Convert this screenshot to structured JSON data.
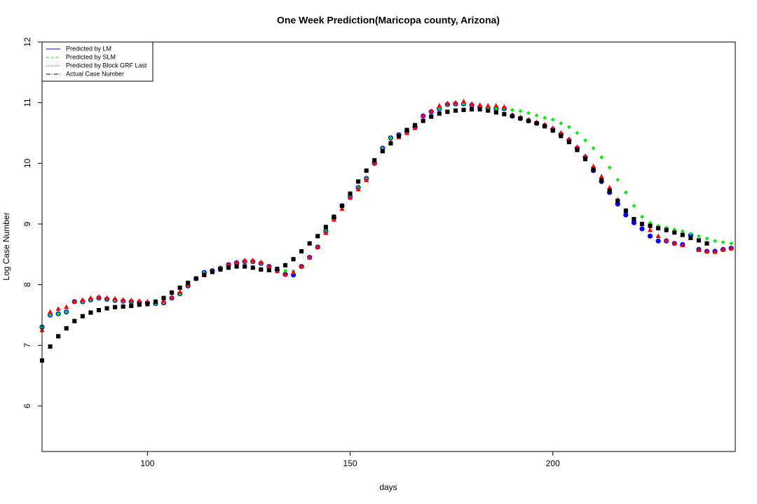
{
  "chart_data": {
    "type": "scatter",
    "title": "One Week Prediction(Maricopa county, Arizona)",
    "x_label": "days",
    "y_label": "Log Case Number",
    "xlim": [
      74,
      245
    ],
    "ylim": [
      5.25,
      12
    ],
    "xticks": [
      100,
      150,
      200
    ],
    "yticks": [
      6,
      7,
      8,
      9,
      10,
      11,
      12
    ],
    "legend_position": "topleft",
    "x": [
      74,
      76,
      78,
      80,
      82,
      84,
      86,
      88,
      90,
      92,
      94,
      96,
      98,
      100,
      102,
      104,
      106,
      108,
      110,
      112,
      114,
      116,
      118,
      120,
      122,
      124,
      126,
      128,
      130,
      132,
      134,
      136,
      138,
      140,
      142,
      144,
      146,
      148,
      150,
      152,
      154,
      156,
      158,
      160,
      162,
      164,
      166,
      168,
      170,
      172,
      174,
      176,
      178,
      180,
      182,
      184,
      186,
      188,
      190,
      192,
      194,
      196,
      198,
      200,
      202,
      204,
      206,
      208,
      210,
      212,
      214,
      216,
      218,
      220,
      222,
      224,
      226,
      228,
      230,
      232,
      234,
      236,
      238,
      240,
      242,
      244
    ],
    "series": [
      {
        "name": "Predicted by LM",
        "color": "#0000ff",
        "marker": "circle",
        "line": "solid",
        "values": [
          7.3,
          7.5,
          7.52,
          7.55,
          7.72,
          7.72,
          7.75,
          7.78,
          7.76,
          7.74,
          7.73,
          7.72,
          7.71,
          7.7,
          7.69,
          7.7,
          7.78,
          7.85,
          7.98,
          8.1,
          8.2,
          8.23,
          8.27,
          8.33,
          8.36,
          8.38,
          8.38,
          8.35,
          8.3,
          8.24,
          8.17,
          8.16,
          8.3,
          8.45,
          8.62,
          8.88,
          9.1,
          9.3,
          9.45,
          9.6,
          9.75,
          10.0,
          10.25,
          10.42,
          10.47,
          10.52,
          10.6,
          10.78,
          10.85,
          10.9,
          10.97,
          10.98,
          10.98,
          10.96,
          10.93,
          10.91,
          10.9,
          10.9,
          10.78,
          10.74,
          10.7,
          10.66,
          10.62,
          10.56,
          10.48,
          10.38,
          10.25,
          10.1,
          9.88,
          9.7,
          9.52,
          9.33,
          9.15,
          9.02,
          8.92,
          8.8,
          8.72,
          8.72,
          8.68,
          8.66,
          8.82,
          8.58,
          8.55,
          8.55,
          8.58,
          8.6
        ]
      },
      {
        "name": "Predicted by SLM",
        "color": "#00ee00",
        "marker": "diamond",
        "line": "dashed",
        "values": [
          7.3,
          7.5,
          7.52,
          7.55,
          7.72,
          7.72,
          7.75,
          7.78,
          7.76,
          7.74,
          7.73,
          7.72,
          7.71,
          7.7,
          7.69,
          7.7,
          7.78,
          7.85,
          7.98,
          8.1,
          8.2,
          8.23,
          8.27,
          8.33,
          8.36,
          8.38,
          8.38,
          8.35,
          8.3,
          8.26,
          8.23,
          8.22,
          8.3,
          8.45,
          8.62,
          8.88,
          9.1,
          9.3,
          9.45,
          9.6,
          9.75,
          10.0,
          10.25,
          10.42,
          10.47,
          10.52,
          10.6,
          10.78,
          10.85,
          10.9,
          10.97,
          10.98,
          10.98,
          10.96,
          10.93,
          10.91,
          10.9,
          10.9,
          10.88,
          10.86,
          10.83,
          10.79,
          10.75,
          10.72,
          10.66,
          10.6,
          10.5,
          10.38,
          10.25,
          10.1,
          9.93,
          9.73,
          9.52,
          9.3,
          9.12,
          9.02,
          8.97,
          8.94,
          8.91,
          8.88,
          8.84,
          8.8,
          8.76,
          8.72,
          8.7,
          8.68
        ]
      },
      {
        "name": "Predicted by Block GRF Last",
        "color": "#ff0000",
        "marker": "triangle",
        "line": "dotted",
        "values": [
          7.25,
          7.55,
          7.6,
          7.63,
          7.72,
          7.75,
          7.78,
          7.8,
          7.78,
          7.77,
          7.75,
          7.74,
          7.73,
          7.72,
          7.72,
          7.73,
          7.8,
          7.88,
          8.0,
          8.1,
          8.17,
          8.22,
          8.27,
          8.33,
          8.37,
          8.4,
          8.4,
          8.37,
          8.3,
          8.22,
          8.17,
          8.2,
          8.3,
          8.45,
          8.62,
          8.85,
          9.07,
          9.25,
          9.43,
          9.57,
          9.72,
          10.0,
          10.22,
          10.35,
          10.43,
          10.5,
          10.58,
          10.78,
          10.86,
          10.95,
          10.99,
          11.0,
          11.02,
          10.98,
          10.96,
          10.95,
          10.95,
          10.93,
          10.8,
          10.76,
          10.72,
          10.68,
          10.64,
          10.58,
          10.5,
          10.4,
          10.27,
          10.12,
          9.95,
          9.78,
          9.6,
          9.4,
          9.22,
          9.08,
          9.0,
          8.9,
          8.8,
          8.73,
          8.68,
          8.65,
          8.77,
          8.57,
          8.55,
          8.54,
          8.58,
          8.6
        ]
      },
      {
        "name": "Actual Case Number",
        "color": "#000000",
        "marker": "square",
        "line": "dotdash",
        "values": [
          6.75,
          6.98,
          7.15,
          7.28,
          7.4,
          7.48,
          7.54,
          7.58,
          7.61,
          7.63,
          7.64,
          7.65,
          7.67,
          7.68,
          7.72,
          7.78,
          7.87,
          7.95,
          8.03,
          8.1,
          8.16,
          8.21,
          8.25,
          8.28,
          8.3,
          8.3,
          8.28,
          8.25,
          8.24,
          8.26,
          8.32,
          8.42,
          8.55,
          8.68,
          8.8,
          8.95,
          9.12,
          9.3,
          9.5,
          9.7,
          9.88,
          10.05,
          10.2,
          10.33,
          10.45,
          10.55,
          10.63,
          10.7,
          10.77,
          10.82,
          10.85,
          10.87,
          10.88,
          10.89,
          10.89,
          10.87,
          10.84,
          10.81,
          10.78,
          10.74,
          10.7,
          10.66,
          10.61,
          10.54,
          10.45,
          10.35,
          10.22,
          10.07,
          9.9,
          9.72,
          9.55,
          9.38,
          9.22,
          9.08,
          9.0,
          8.97,
          8.93,
          8.9,
          8.86,
          8.82,
          8.77,
          8.73,
          8.68,
          null,
          null,
          null
        ]
      }
    ]
  }
}
